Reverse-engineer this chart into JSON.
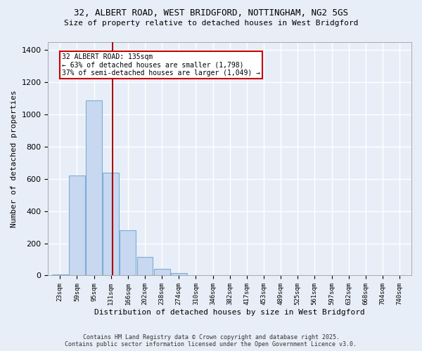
{
  "title_line1": "32, ALBERT ROAD, WEST BRIDGFORD, NOTTINGHAM, NG2 5GS",
  "title_line2": "Size of property relative to detached houses in West Bridgford",
  "xlabel": "Distribution of detached houses by size in West Bridgford",
  "ylabel": "Number of detached properties",
  "categories": [
    "23sqm",
    "59sqm",
    "95sqm",
    "131sqm",
    "166sqm",
    "202sqm",
    "238sqm",
    "274sqm",
    "310sqm",
    "346sqm",
    "382sqm",
    "417sqm",
    "453sqm",
    "489sqm",
    "525sqm",
    "561sqm",
    "597sqm",
    "632sqm",
    "668sqm",
    "704sqm",
    "740sqm"
  ],
  "values": [
    5,
    620,
    1090,
    640,
    280,
    115,
    40,
    15,
    0,
    0,
    0,
    0,
    0,
    0,
    0,
    0,
    0,
    0,
    0,
    0,
    0
  ],
  "bar_color": "#c8d8f0",
  "bar_edgecolor": "#7aafd4",
  "ylim": [
    0,
    1450
  ],
  "yticks": [
    0,
    200,
    400,
    600,
    800,
    1000,
    1200,
    1400
  ],
  "vline_color": "#aa0000",
  "annotation_title": "32 ALBERT ROAD: 135sqm",
  "annotation_line2": "← 63% of detached houses are smaller (1,798)",
  "annotation_line3": "37% of semi-detached houses are larger (1,049) →",
  "annotation_box_color": "#cc0000",
  "annotation_bg": "white",
  "footer_line1": "Contains HM Land Registry data © Crown copyright and database right 2025.",
  "footer_line2": "Contains public sector information licensed under the Open Government Licence v3.0.",
  "background_color": "#e8eef8",
  "grid_color": "white",
  "bin_width": 36
}
